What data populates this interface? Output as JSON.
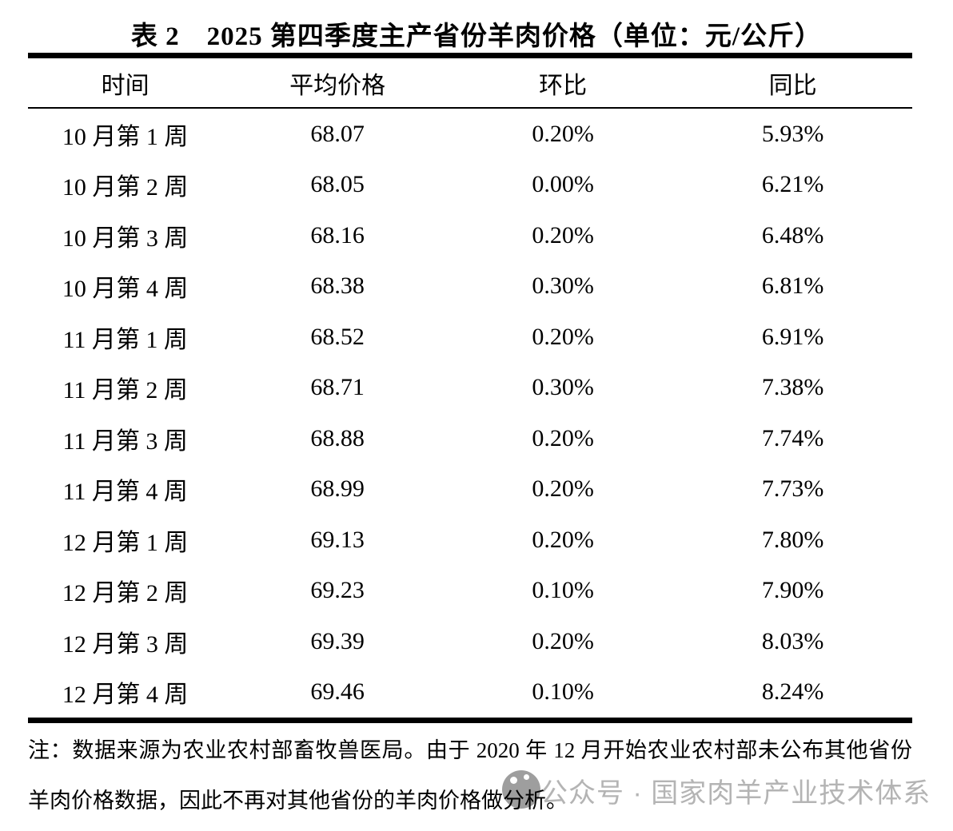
{
  "page": {
    "background": "#ffffff",
    "text_color": "#000000"
  },
  "title": "表 2　2025 第四季度主产省份羊肉价格（单位：元/公斤）",
  "table": {
    "headers": [
      "时间",
      "平均价格",
      "环比",
      "同比"
    ],
    "rows": [
      [
        "10 月第 1 周",
        "68.07",
        "0.20%",
        "5.93%"
      ],
      [
        "10 月第 2 周",
        "68.05",
        "0.00%",
        "6.21%"
      ],
      [
        "10 月第 3 周",
        "68.16",
        "0.20%",
        "6.48%"
      ],
      [
        "10 月第 4 周",
        "68.38",
        "0.30%",
        "6.81%"
      ],
      [
        "11 月第 1 周",
        "68.52",
        "0.20%",
        "6.91%"
      ],
      [
        "11 月第 2 周",
        "68.71",
        "0.30%",
        "7.38%"
      ],
      [
        "11 月第 3 周",
        "68.88",
        "0.20%",
        "7.74%"
      ],
      [
        "11 月第 4 周",
        "68.99",
        "0.20%",
        "7.73%"
      ],
      [
        "12 月第 1 周",
        "69.13",
        "0.20%",
        "7.80%"
      ],
      [
        "12 月第 2 周",
        "69.23",
        "0.10%",
        "7.90%"
      ],
      [
        "12 月第 3 周",
        "69.39",
        "0.20%",
        "8.03%"
      ],
      [
        "12 月第 4 周",
        "69.46",
        "0.10%",
        "8.24%"
      ]
    ]
  },
  "note": {
    "line1": "注：数据来源为农业农村部畜牧兽医局。由于 2020 年 12 月开始农业农村部未公布其他省份",
    "line2": "羊肉价格数据，因此不再对其他省份的羊肉价格做分析。"
  },
  "watermark": {
    "icon": "wechat-official-account-icon",
    "text": "公众号 · 国家肉羊产业技术体系",
    "text_color": "#b4b4b4",
    "icon_color": "#9e9e9e"
  }
}
